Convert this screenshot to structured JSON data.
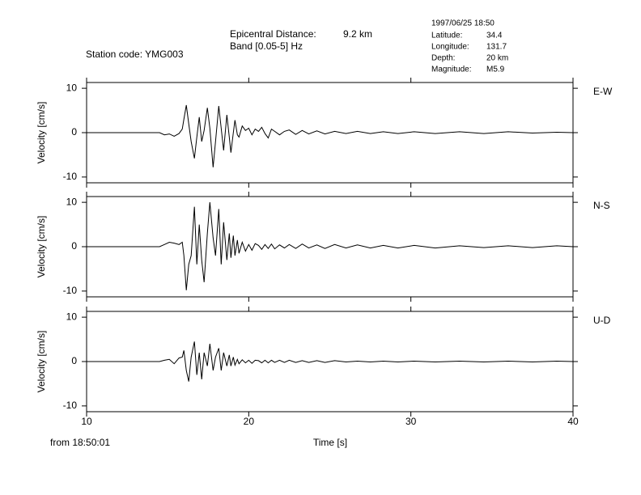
{
  "header": {
    "station": "Station code: YMG003",
    "distance_label": "Epicentral Distance:",
    "distance": "9.2 km",
    "band": "Band [0.05-5] Hz",
    "datetime": "1997/06/25 18:50",
    "latitude_label": "Latitude:",
    "latitude": "34.4",
    "longitude_label": "Longitude:",
    "longitude": "131.7",
    "depth_label": "Depth:",
    "depth": "20 km",
    "magnitude_label": "Magnitude:",
    "magnitude": "M5.9"
  },
  "footer": {
    "start": "from 18:50:01"
  },
  "chart_data": [
    {
      "type": "line",
      "panel_label": "E-W",
      "ylabel": "Velocity [cm/s]",
      "xlim": [
        10,
        40
      ],
      "ylim": [
        -11.3,
        11.3
      ],
      "yticks": [
        -10,
        0,
        10
      ],
      "series": [
        {
          "color": "#000000",
          "x": [
            10,
            14.5,
            14.8,
            15.1,
            15.4,
            15.7,
            15.9,
            16.0,
            16.15,
            16.3,
            16.45,
            16.65,
            16.8,
            16.95,
            17.1,
            17.25,
            17.45,
            17.6,
            17.8,
            17.95,
            18.15,
            18.3,
            18.45,
            18.65,
            18.8,
            18.9,
            19.05,
            19.15,
            19.3,
            19.4,
            19.6,
            19.8,
            20.0,
            20.2,
            20.4,
            20.6,
            20.8,
            21.0,
            21.2,
            21.4,
            21.6,
            21.9,
            22.2,
            22.5,
            22.9,
            23.3,
            23.7,
            24.2,
            24.7,
            25.3,
            26,
            26.7,
            27.5,
            28.3,
            29.2,
            30.2,
            31.5,
            33,
            34.5,
            36,
            37.5,
            39,
            40
          ],
          "values": [
            0,
            0,
            -0.5,
            -0.3,
            -0.8,
            -0.2,
            0.8,
            3,
            6.2,
            2,
            -2,
            -5.8,
            -1,
            3.5,
            -2,
            0.5,
            5.6,
            1,
            -7.8,
            -2,
            6,
            1,
            -4,
            4,
            -1,
            -4.5,
            0,
            2.8,
            -0.5,
            -1,
            1.5,
            0.5,
            1,
            -0.5,
            0.8,
            0.3,
            1.2,
            -0.2,
            -1.2,
            0.8,
            0.3,
            -0.5,
            0.3,
            0.6,
            -0.4,
            0.5,
            -0.3,
            0.4,
            -0.3,
            0.3,
            -0.2,
            0.3,
            -0.2,
            0.2,
            -0.2,
            0.2,
            -0.2,
            0.2,
            -0.2,
            0.2,
            -0.1,
            0.1,
            0
          ]
        }
      ]
    },
    {
      "type": "line",
      "panel_label": "N-S",
      "ylabel": "Velocity [cm/s]",
      "xlim": [
        10,
        40
      ],
      "ylim": [
        -11.3,
        11.3
      ],
      "yticks": [
        -10,
        0,
        10
      ],
      "series": [
        {
          "color": "#000000",
          "x": [
            10,
            14.5,
            14.8,
            15.1,
            15.4,
            15.7,
            15.9,
            16.0,
            16.15,
            16.3,
            16.45,
            16.65,
            16.8,
            16.95,
            17.1,
            17.25,
            17.45,
            17.6,
            17.8,
            17.95,
            18.15,
            18.3,
            18.45,
            18.65,
            18.8,
            18.9,
            19.05,
            19.15,
            19.3,
            19.4,
            19.6,
            19.8,
            20.0,
            20.2,
            20.4,
            20.6,
            20.8,
            21.0,
            21.2,
            21.4,
            21.6,
            21.9,
            22.2,
            22.5,
            22.9,
            23.3,
            23.7,
            24.2,
            24.7,
            25.3,
            26,
            26.7,
            27.5,
            28.3,
            29.2,
            30.2,
            31.5,
            33,
            34.5,
            36,
            37.5,
            39,
            40
          ],
          "values": [
            0,
            0,
            0.5,
            1,
            0.8,
            0.5,
            1,
            -2,
            -9.8,
            -4,
            -2,
            9,
            -4,
            5,
            -3,
            -8,
            3,
            10,
            2,
            -2,
            8.5,
            -4,
            5.5,
            -3,
            3,
            -2.5,
            2.5,
            -2,
            1.5,
            -1.5,
            1,
            -1,
            0.5,
            -0.8,
            0.7,
            0.3,
            -0.6,
            0.5,
            -0.4,
            0.6,
            -0.5,
            0.4,
            -0.3,
            0.5,
            -0.4,
            0.6,
            -0.3,
            0.4,
            -0.4,
            0.5,
            -0.3,
            0.4,
            -0.3,
            0.3,
            -0.3,
            0.3,
            -0.3,
            0.2,
            -0.2,
            0.2,
            -0.2,
            0.2,
            0
          ]
        }
      ]
    },
    {
      "type": "line",
      "panel_label": "U-D",
      "ylabel": "Velocity [cm/s]",
      "xlabel": "Time [s]",
      "xlim": [
        10,
        40
      ],
      "xticks": [
        10,
        20,
        30,
        40
      ],
      "ylim": [
        -11.3,
        11.3
      ],
      "yticks": [
        -10,
        0,
        10
      ],
      "series": [
        {
          "color": "#000000",
          "x": [
            10,
            14.5,
            14.8,
            15.1,
            15.4,
            15.7,
            15.9,
            16.0,
            16.15,
            16.3,
            16.45,
            16.65,
            16.8,
            16.95,
            17.1,
            17.25,
            17.45,
            17.6,
            17.8,
            17.95,
            18.15,
            18.3,
            18.45,
            18.65,
            18.8,
            18.9,
            19.05,
            19.15,
            19.3,
            19.4,
            19.6,
            19.8,
            20.0,
            20.2,
            20.4,
            20.6,
            20.8,
            21.0,
            21.2,
            21.4,
            21.6,
            21.9,
            22.2,
            22.5,
            22.9,
            23.3,
            23.7,
            24.2,
            24.7,
            25.3,
            26,
            26.7,
            27.5,
            28.3,
            29.2,
            30.2,
            31.5,
            33,
            34.5,
            36,
            37.5,
            39,
            40
          ],
          "values": [
            0,
            0,
            0.3,
            0.5,
            -0.5,
            0.8,
            1,
            2.5,
            -2,
            -4.5,
            1,
            4.5,
            -3,
            2,
            -4,
            2,
            -1,
            4,
            -2,
            1,
            3,
            -2,
            2,
            -1,
            1.5,
            -1,
            1,
            -0.8,
            0.5,
            -0.5,
            0.4,
            -0.3,
            0.3,
            -0.4,
            0.3,
            0.2,
            -0.3,
            0.3,
            -0.3,
            0.3,
            -0.2,
            0.3,
            -0.2,
            0.3,
            -0.2,
            0.2,
            -0.2,
            0.2,
            -0.2,
            0.2,
            -0.1,
            0.1,
            -0.1,
            0.1,
            -0.1,
            0.1,
            -0.1,
            0.1,
            -0.1,
            0.1,
            -0.1,
            0.1,
            0
          ]
        }
      ]
    }
  ]
}
